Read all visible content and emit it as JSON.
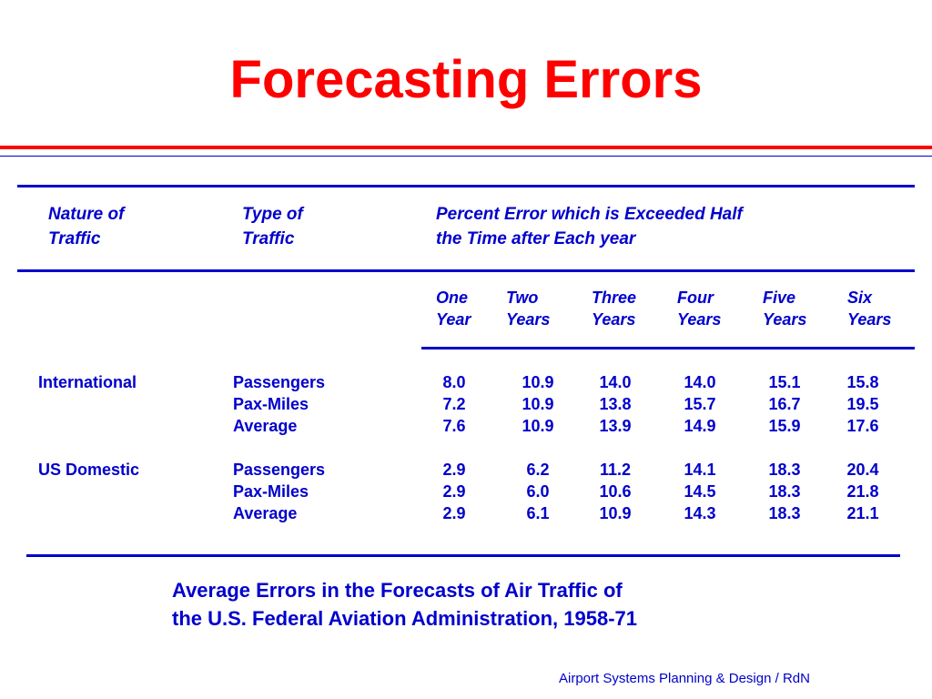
{
  "title": "Forecasting Errors",
  "headers": {
    "nature": [
      "Nature of",
      "Traffic"
    ],
    "type": [
      "Type of",
      "Traffic"
    ],
    "percent": [
      "Percent Error which is Exceeded Half",
      "the Time after Each year"
    ]
  },
  "years": [
    [
      "One",
      "Year"
    ],
    [
      "Two",
      "Years"
    ],
    [
      "Three",
      "Years"
    ],
    [
      "Four",
      "Years"
    ],
    [
      "Five",
      "Years"
    ],
    [
      "Six",
      "Years"
    ]
  ],
  "groups": [
    {
      "nature": "International",
      "rows": [
        {
          "type": "Passengers",
          "values": [
            "8.0",
            "10.9",
            "14.0",
            "14.0",
            "15.1",
            "15.8"
          ]
        },
        {
          "type": "Pax-Miles",
          "values": [
            "7.2",
            "10.9",
            "13.8",
            "15.7",
            "16.7",
            "19.5"
          ]
        },
        {
          "type": "Average",
          "values": [
            "7.6",
            "10.9",
            "13.9",
            "14.9",
            "15.9",
            "17.6"
          ]
        }
      ]
    },
    {
      "nature": "US Domestic",
      "rows": [
        {
          "type": "Passengers",
          "values": [
            "2.9",
            "6.2",
            "11.2",
            "14.1",
            "18.3",
            "20.4"
          ]
        },
        {
          "type": "Pax-Miles",
          "values": [
            "2.9",
            "6.0",
            "10.6",
            "14.5",
            "18.3",
            "21.8"
          ]
        },
        {
          "type": "Average",
          "values": [
            "2.9",
            "6.1",
            "10.9",
            "14.3",
            "18.3",
            "21.1"
          ]
        }
      ]
    }
  ],
  "caption": [
    "Average Errors in the Forecasts of Air Traffic of",
    "the U.S. Federal Aviation Administration, 1958-71"
  ],
  "footer": "Airport Systems Planning & Design / RdN",
  "colors": {
    "title": "#ff0000",
    "text": "#0000cc",
    "rule_red": "#ff0000",
    "rule_blue": "#0000cc"
  }
}
